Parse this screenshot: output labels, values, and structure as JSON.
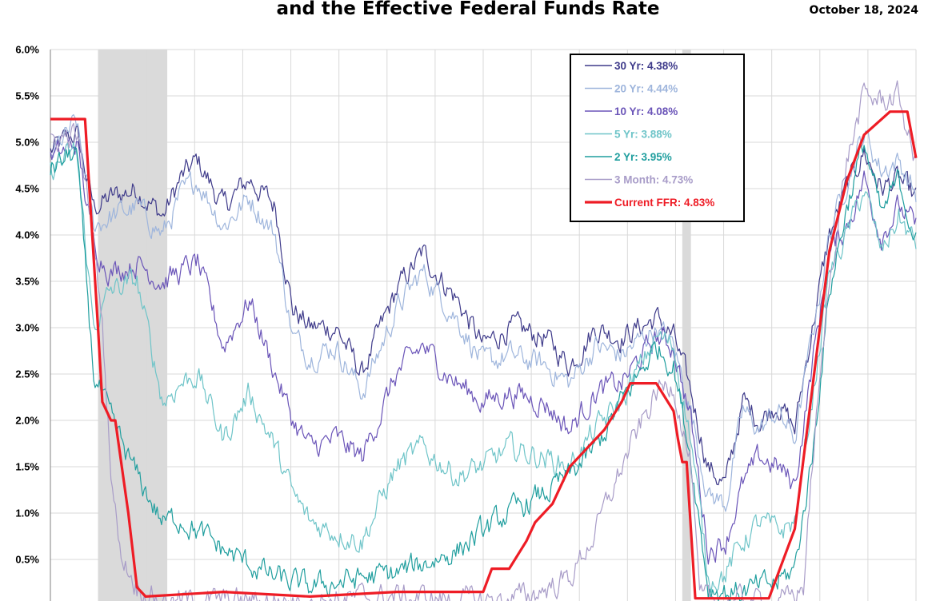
{
  "header": {
    "title": "and the Effective Federal Funds Rate",
    "date": "October 18, 2024"
  },
  "chart_data": {
    "type": "line",
    "title": "and the Effective Federal Funds Rate",
    "xlabel": "",
    "ylabel": "",
    "ylim": [
      0,
      6
    ],
    "y_ticks": [
      "0.5%",
      "1.0%",
      "1.5%",
      "2.0%",
      "2.5%",
      "3.0%",
      "3.5%",
      "4.0%",
      "4.5%",
      "5.0%",
      "5.5%",
      "6.0%"
    ],
    "grid": true,
    "legend_position": "top-right",
    "recession_shading": [
      {
        "start": 0.055,
        "end": 0.135
      },
      {
        "start": 0.73,
        "end": 0.74
      }
    ],
    "series": [
      {
        "name": "30 Yr",
        "label": "30 Yr: 4.38%",
        "color": "#3e3a8a",
        "x": [
          0,
          0.03,
          0.05,
          0.07,
          0.1,
          0.13,
          0.15,
          0.17,
          0.2,
          0.23,
          0.26,
          0.28,
          0.3,
          0.33,
          0.36,
          0.4,
          0.43,
          0.47,
          0.5,
          0.53,
          0.57,
          0.6,
          0.63,
          0.66,
          0.7,
          0.72,
          0.74,
          0.76,
          0.78,
          0.8,
          0.82,
          0.84,
          0.86,
          0.88,
          0.9,
          0.92,
          0.94,
          0.96,
          0.98,
          1.0
        ],
        "y": [
          4.9,
          5.1,
          4.3,
          4.4,
          4.5,
          4.2,
          4.6,
          4.8,
          4.3,
          4.6,
          4.3,
          3.2,
          3.0,
          3.0,
          2.5,
          3.4,
          3.8,
          3.3,
          2.8,
          3.0,
          2.9,
          2.6,
          3.0,
          2.9,
          3.1,
          2.9,
          2.3,
          1.5,
          1.3,
          2.2,
          2.0,
          2.2,
          1.9,
          3.0,
          4.0,
          4.5,
          4.9,
          4.5,
          4.6,
          4.38
        ]
      },
      {
        "name": "20 Yr",
        "label": "20 Yr: 4.44%",
        "color": "#9eb5dc",
        "x": [
          0,
          0.03,
          0.05,
          0.07,
          0.1,
          0.13,
          0.15,
          0.17,
          0.2,
          0.23,
          0.26,
          0.28,
          0.3,
          0.33,
          0.36,
          0.4,
          0.43,
          0.47,
          0.5,
          0.53,
          0.57,
          0.6,
          0.63,
          0.66,
          0.7,
          0.72,
          0.74,
          0.76,
          0.78,
          0.8,
          0.82,
          0.84,
          0.86,
          0.88,
          0.9,
          0.92,
          0.94,
          0.96,
          0.98,
          1.0
        ],
        "y": [
          4.85,
          5.2,
          4.1,
          4.2,
          4.3,
          4.0,
          4.4,
          4.6,
          4.1,
          4.4,
          4.0,
          2.9,
          2.7,
          2.8,
          2.3,
          3.2,
          3.6,
          3.1,
          2.6,
          2.7,
          2.6,
          2.4,
          2.8,
          2.7,
          3.0,
          2.8,
          2.1,
          1.2,
          1.1,
          2.1,
          1.9,
          2.1,
          1.8,
          2.9,
          4.0,
          4.6,
          5.1,
          4.7,
          4.8,
          4.44
        ]
      },
      {
        "name": "10 Yr",
        "label": "10 Yr: 4.08%",
        "color": "#6a54b8",
        "x": [
          0,
          0.03,
          0.05,
          0.07,
          0.1,
          0.13,
          0.15,
          0.17,
          0.2,
          0.23,
          0.26,
          0.28,
          0.3,
          0.33,
          0.36,
          0.4,
          0.43,
          0.47,
          0.5,
          0.53,
          0.57,
          0.6,
          0.63,
          0.66,
          0.7,
          0.72,
          0.74,
          0.76,
          0.78,
          0.8,
          0.82,
          0.84,
          0.86,
          0.88,
          0.9,
          0.92,
          0.94,
          0.96,
          0.98,
          1.0
        ],
        "y": [
          4.8,
          5.0,
          3.9,
          3.6,
          3.7,
          3.5,
          3.6,
          3.7,
          2.8,
          3.3,
          2.5,
          2.0,
          1.7,
          1.8,
          1.6,
          2.5,
          2.8,
          2.4,
          2.2,
          2.3,
          2.2,
          1.9,
          2.3,
          2.4,
          2.9,
          2.8,
          2.0,
          0.6,
          0.7,
          1.3,
          1.6,
          1.5,
          1.3,
          2.6,
          3.8,
          4.1,
          4.6,
          4.0,
          4.3,
          4.08
        ]
      },
      {
        "name": "5 Yr",
        "label": "5 Yr: 3.88%",
        "color": "#6ec4c8",
        "x": [
          0,
          0.03,
          0.05,
          0.07,
          0.1,
          0.13,
          0.15,
          0.17,
          0.2,
          0.23,
          0.26,
          0.28,
          0.3,
          0.33,
          0.36,
          0.4,
          0.43,
          0.47,
          0.5,
          0.53,
          0.57,
          0.6,
          0.63,
          0.66,
          0.7,
          0.72,
          0.74,
          0.76,
          0.78,
          0.8,
          0.82,
          0.84,
          0.86,
          0.88,
          0.9,
          0.92,
          0.94,
          0.96,
          0.98,
          1.0
        ],
        "y": [
          4.7,
          4.9,
          3.0,
          3.4,
          3.5,
          2.2,
          2.4,
          2.5,
          1.8,
          2.3,
          1.7,
          1.2,
          0.9,
          0.8,
          0.7,
          1.5,
          1.7,
          1.4,
          1.5,
          1.7,
          1.6,
          1.5,
          1.9,
          2.2,
          2.9,
          2.8,
          1.8,
          0.3,
          0.35,
          0.7,
          0.9,
          0.8,
          0.9,
          2.2,
          3.6,
          4.0,
          4.5,
          3.8,
          4.2,
          3.88
        ]
      },
      {
        "name": "2 Yr",
        "label": "2 Yr: 3.95%",
        "color": "#1f9e9e",
        "x": [
          0,
          0.03,
          0.05,
          0.07,
          0.1,
          0.13,
          0.15,
          0.17,
          0.2,
          0.23,
          0.26,
          0.28,
          0.3,
          0.33,
          0.36,
          0.4,
          0.43,
          0.47,
          0.5,
          0.53,
          0.57,
          0.6,
          0.63,
          0.66,
          0.7,
          0.72,
          0.74,
          0.76,
          0.78,
          0.8,
          0.82,
          0.84,
          0.86,
          0.88,
          0.9,
          0.92,
          0.94,
          0.96,
          0.98,
          1.0
        ],
        "y": [
          4.7,
          4.9,
          2.5,
          2.0,
          1.4,
          0.9,
          0.95,
          0.8,
          0.6,
          0.45,
          0.3,
          0.25,
          0.2,
          0.25,
          0.3,
          0.35,
          0.45,
          0.6,
          0.8,
          1.0,
          1.2,
          1.4,
          1.7,
          2.2,
          2.8,
          2.6,
          1.6,
          0.2,
          0.15,
          0.15,
          0.2,
          0.25,
          0.4,
          1.6,
          3.4,
          4.3,
          5.0,
          4.2,
          4.6,
          3.95
        ]
      },
      {
        "name": "3 Month",
        "label": "3 Month: 4.73%",
        "color": "#a89cc8",
        "x": [
          0,
          0.03,
          0.05,
          0.06,
          0.07,
          0.08,
          0.1,
          0.13,
          0.2,
          0.3,
          0.4,
          0.5,
          0.55,
          0.6,
          0.63,
          0.66,
          0.7,
          0.72,
          0.74,
          0.75,
          0.8,
          0.85,
          0.87,
          0.88,
          0.9,
          0.92,
          0.94,
          0.96,
          0.98,
          1.0
        ],
        "y": [
          5.0,
          5.1,
          4.0,
          3.0,
          1.5,
          0.6,
          0.2,
          0.05,
          0.05,
          0.05,
          0.1,
          0.05,
          0.1,
          0.3,
          0.8,
          1.5,
          2.3,
          2.4,
          1.5,
          0.05,
          0.05,
          0.05,
          0.2,
          1.5,
          3.5,
          4.8,
          5.5,
          5.45,
          5.5,
          4.73
        ]
      },
      {
        "name": "Current FFR",
        "label": "Current FFR: 4.83%",
        "color": "#ee1c25",
        "x": [
          0,
          0.04,
          0.045,
          0.055,
          0.06,
          0.07,
          0.075,
          0.09,
          0.1,
          0.105,
          0.11,
          0.2,
          0.3,
          0.4,
          0.5,
          0.51,
          0.53,
          0.55,
          0.56,
          0.58,
          0.59,
          0.6,
          0.62,
          0.64,
          0.66,
          0.67,
          0.68,
          0.7,
          0.72,
          0.725,
          0.73,
          0.735,
          0.745,
          0.75,
          0.77,
          0.79,
          0.8,
          0.83,
          0.84,
          0.86,
          0.87,
          0.88,
          0.89,
          0.9,
          0.92,
          0.94,
          0.97,
          0.99,
          1.0
        ],
        "y": [
          5.25,
          5.25,
          4.5,
          3.0,
          2.2,
          2.0,
          2.0,
          1.0,
          0.2,
          0.15,
          0.1,
          0.15,
          0.1,
          0.15,
          0.15,
          0.4,
          0.4,
          0.7,
          0.9,
          1.1,
          1.3,
          1.5,
          1.7,
          1.9,
          2.2,
          2.4,
          2.4,
          2.4,
          2.1,
          1.8,
          1.55,
          1.55,
          0.08,
          0.08,
          0.08,
          0.08,
          0.08,
          0.08,
          0.33,
          0.83,
          1.58,
          2.33,
          3.08,
          3.83,
          4.58,
          5.08,
          5.33,
          5.33,
          4.83
        ]
      }
    ]
  }
}
